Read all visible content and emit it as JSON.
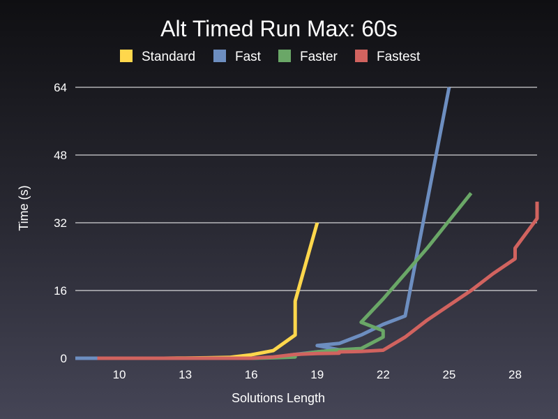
{
  "chart_data": {
    "type": "line",
    "title": "Alt Timed Run Max: 60s",
    "xlabel": "Solutions Length",
    "ylabel": "Time (s)",
    "xlim": [
      8,
      29
    ],
    "ylim": [
      0,
      64
    ],
    "xticks": [
      10,
      13,
      16,
      19,
      22,
      25,
      28
    ],
    "yticks": [
      0,
      16,
      32,
      48,
      64
    ],
    "grid": true,
    "legend": "top",
    "series": [
      {
        "name": "Standard",
        "color": "#ffd74c",
        "x": [
          9,
          10,
          11,
          12,
          13,
          14,
          15,
          16,
          17,
          18,
          18,
          19
        ],
        "y": [
          0,
          0,
          0,
          0,
          0.05,
          0.1,
          0.2,
          0.8,
          1.8,
          5.5,
          13.5,
          32
        ]
      },
      {
        "name": "Fast",
        "color": "#6d8ec0",
        "x": [
          8,
          9,
          10,
          11,
          12,
          13,
          14,
          15,
          16,
          17,
          18,
          19,
          20,
          19,
          20,
          21,
          22,
          23,
          25
        ],
        "y": [
          0,
          0,
          0,
          0,
          0,
          0,
          0,
          0,
          0,
          0.2,
          0.9,
          1.5,
          2,
          3,
          3.5,
          5.5,
          8,
          10,
          64
        ]
      },
      {
        "name": "Faster",
        "color": "#6aa767",
        "x": [
          10,
          11,
          12,
          13,
          14,
          15,
          16,
          17,
          18,
          18,
          19,
          20,
          21,
          22,
          22,
          21,
          22,
          23,
          24,
          25,
          26
        ],
        "y": [
          0,
          0,
          0,
          0,
          0,
          0,
          0,
          0.1,
          0.3,
          0.8,
          1.5,
          2,
          2.3,
          5,
          6.5,
          8.5,
          14,
          20,
          26,
          32.5,
          39
        ]
      },
      {
        "name": "Fastest",
        "color": "#d1635f",
        "x": [
          9,
          10,
          11,
          12,
          13,
          14,
          15,
          16,
          17,
          18,
          19,
          20,
          20,
          21,
          22,
          23,
          24,
          25,
          26,
          27,
          28,
          28,
          29,
          29
        ],
        "y": [
          0,
          0,
          0,
          0,
          0,
          0,
          0,
          0,
          0.3,
          0.9,
          1.1,
          1.2,
          1.5,
          1.6,
          1.9,
          5,
          9,
          12.5,
          16,
          20,
          23.5,
          26,
          33,
          37
        ]
      }
    ]
  }
}
